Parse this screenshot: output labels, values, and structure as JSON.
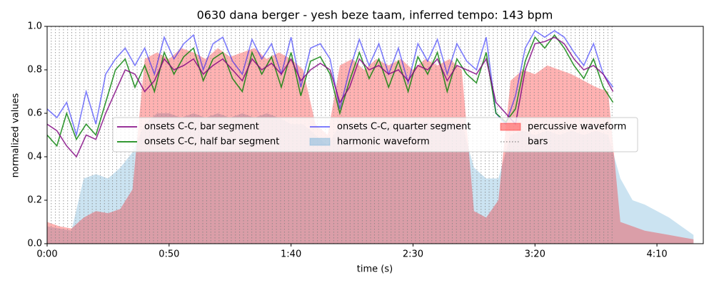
{
  "chart_data": {
    "type": "line",
    "title": "0630 dana berger - yesh beze taam, inferred tempo: 143 bpm",
    "xlabel": "time (s)",
    "ylabel": "normalized values",
    "xlim": [
      0,
      269
    ],
    "ylim": [
      0,
      1
    ],
    "xticks": [
      {
        "value": 0,
        "label": "0:00"
      },
      {
        "value": 50,
        "label": "0:50"
      },
      {
        "value": 100,
        "label": "1:40"
      },
      {
        "value": 150,
        "label": "2:30"
      },
      {
        "value": 200,
        "label": "3:20"
      },
      {
        "value": 250,
        "label": "4:10"
      }
    ],
    "yticks": [
      {
        "value": 0,
        "label": "0.0"
      },
      0.2,
      0.4,
      0.6,
      0.8,
      {
        "value": 1,
        "label": "1.0"
      }
    ],
    "series": [
      {
        "name": "onsets C-C, bar segment",
        "style": "line",
        "color": "#800080",
        "alpha": 0.8,
        "x": [
          0,
          4,
          8,
          12,
          16,
          20,
          24,
          28,
          32,
          36,
          40,
          44,
          48,
          52,
          56,
          60,
          64,
          68,
          72,
          76,
          80,
          84,
          88,
          92,
          96,
          100,
          104,
          108,
          112,
          116,
          120,
          124,
          128,
          132,
          136,
          140,
          144,
          148,
          152,
          156,
          160,
          164,
          168,
          172,
          176,
          180,
          184,
          188,
          192,
          196,
          200,
          204,
          208,
          212,
          216,
          220,
          224,
          228,
          232
        ],
        "values": [
          0.55,
          0.52,
          0.45,
          0.4,
          0.5,
          0.48,
          0.6,
          0.7,
          0.8,
          0.78,
          0.7,
          0.75,
          0.85,
          0.8,
          0.82,
          0.85,
          0.78,
          0.82,
          0.85,
          0.8,
          0.75,
          0.85,
          0.8,
          0.83,
          0.78,
          0.85,
          0.75,
          0.8,
          0.83,
          0.8,
          0.65,
          0.72,
          0.85,
          0.8,
          0.82,
          0.78,
          0.8,
          0.75,
          0.82,
          0.8,
          0.85,
          0.75,
          0.82,
          0.8,
          0.78,
          0.85,
          0.65,
          0.6,
          0.55,
          0.8,
          0.92,
          0.93,
          0.95,
          0.92,
          0.85,
          0.8,
          0.82,
          0.78,
          0.7
        ]
      },
      {
        "name": "onsets C-C, half bar segment",
        "style": "line",
        "color": "#008000",
        "alpha": 0.8,
        "x": [
          0,
          4,
          8,
          12,
          16,
          20,
          24,
          28,
          32,
          36,
          40,
          44,
          48,
          52,
          56,
          60,
          64,
          68,
          72,
          76,
          80,
          84,
          88,
          92,
          96,
          100,
          104,
          108,
          112,
          116,
          120,
          124,
          128,
          132,
          136,
          140,
          144,
          148,
          152,
          156,
          160,
          164,
          168,
          172,
          176,
          180,
          184,
          188,
          192,
          196,
          200,
          204,
          208,
          212,
          216,
          220,
          224,
          228,
          232
        ],
        "values": [
          0.5,
          0.45,
          0.6,
          0.48,
          0.55,
          0.5,
          0.65,
          0.8,
          0.85,
          0.72,
          0.82,
          0.7,
          0.88,
          0.78,
          0.86,
          0.9,
          0.75,
          0.85,
          0.88,
          0.76,
          0.7,
          0.88,
          0.78,
          0.86,
          0.72,
          0.88,
          0.68,
          0.84,
          0.86,
          0.78,
          0.6,
          0.75,
          0.88,
          0.76,
          0.85,
          0.72,
          0.84,
          0.7,
          0.86,
          0.78,
          0.88,
          0.7,
          0.85,
          0.78,
          0.74,
          0.88,
          0.6,
          0.56,
          0.62,
          0.84,
          0.95,
          0.9,
          0.96,
          0.9,
          0.82,
          0.76,
          0.85,
          0.72,
          0.65
        ]
      },
      {
        "name": "onsets C-C, quarter segment",
        "style": "line",
        "color": "#0000ff",
        "alpha": 0.5,
        "x": [
          0,
          4,
          8,
          12,
          16,
          20,
          24,
          28,
          32,
          36,
          40,
          44,
          48,
          52,
          56,
          60,
          64,
          68,
          72,
          76,
          80,
          84,
          88,
          92,
          96,
          100,
          104,
          108,
          112,
          116,
          120,
          124,
          128,
          132,
          136,
          140,
          144,
          148,
          152,
          156,
          160,
          164,
          168,
          172,
          176,
          180,
          184,
          188,
          192,
          196,
          200,
          204,
          208,
          212,
          216,
          220,
          224,
          228,
          232
        ],
        "values": [
          0.62,
          0.58,
          0.65,
          0.5,
          0.7,
          0.55,
          0.78,
          0.85,
          0.9,
          0.82,
          0.9,
          0.78,
          0.95,
          0.85,
          0.92,
          0.96,
          0.8,
          0.92,
          0.95,
          0.84,
          0.78,
          0.94,
          0.85,
          0.92,
          0.78,
          0.95,
          0.72,
          0.9,
          0.92,
          0.85,
          0.62,
          0.8,
          0.94,
          0.82,
          0.92,
          0.78,
          0.9,
          0.74,
          0.92,
          0.84,
          0.94,
          0.78,
          0.92,
          0.84,
          0.8,
          0.95,
          0.6,
          0.55,
          0.68,
          0.9,
          0.98,
          0.95,
          0.98,
          0.95,
          0.88,
          0.82,
          0.92,
          0.78,
          0.72
        ]
      },
      {
        "name": "harmonic waveform",
        "style": "area",
        "color": "#6baed6",
        "alpha": 0.35,
        "x": [
          0,
          5,
          10,
          15,
          20,
          25,
          30,
          35,
          40,
          45,
          50,
          55,
          60,
          65,
          70,
          75,
          80,
          85,
          90,
          95,
          100,
          105,
          110,
          115,
          120,
          125,
          130,
          135,
          140,
          145,
          150,
          155,
          160,
          165,
          170,
          175,
          180,
          185,
          190,
          195,
          200,
          205,
          210,
          215,
          220,
          225,
          230,
          235,
          240,
          245,
          250,
          255,
          260,
          265
        ],
        "values": [
          0.08,
          0.07,
          0.06,
          0.3,
          0.32,
          0.3,
          0.35,
          0.42,
          0.55,
          0.6,
          0.6,
          0.58,
          0.6,
          0.58,
          0.6,
          0.58,
          0.6,
          0.58,
          0.6,
          0.58,
          0.55,
          0.55,
          0.5,
          0.45,
          0.55,
          0.56,
          0.55,
          0.56,
          0.55,
          0.56,
          0.55,
          0.56,
          0.55,
          0.56,
          0.55,
          0.35,
          0.3,
          0.3,
          0.5,
          0.52,
          0.5,
          0.52,
          0.5,
          0.52,
          0.5,
          0.52,
          0.5,
          0.3,
          0.2,
          0.18,
          0.15,
          0.12,
          0.08,
          0.04
        ]
      },
      {
        "name": "percussive waveform",
        "style": "area",
        "color": "#ff0000",
        "alpha": 0.3,
        "x": [
          0,
          5,
          10,
          15,
          20,
          25,
          30,
          35,
          40,
          45,
          50,
          55,
          60,
          65,
          70,
          75,
          80,
          85,
          90,
          95,
          100,
          105,
          110,
          115,
          120,
          125,
          130,
          135,
          140,
          145,
          150,
          155,
          160,
          165,
          170,
          175,
          180,
          185,
          190,
          195,
          200,
          205,
          210,
          215,
          220,
          225,
          230,
          235,
          240,
          245,
          250,
          255,
          260,
          265
        ],
        "values": [
          0.1,
          0.08,
          0.07,
          0.12,
          0.15,
          0.14,
          0.16,
          0.25,
          0.85,
          0.88,
          0.85,
          0.9,
          0.88,
          0.85,
          0.9,
          0.86,
          0.88,
          0.9,
          0.85,
          0.88,
          0.85,
          0.8,
          0.55,
          0.5,
          0.82,
          0.85,
          0.8,
          0.85,
          0.82,
          0.85,
          0.8,
          0.85,
          0.82,
          0.85,
          0.8,
          0.15,
          0.12,
          0.2,
          0.75,
          0.8,
          0.78,
          0.82,
          0.8,
          0.78,
          0.75,
          0.72,
          0.7,
          0.1,
          0.08,
          0.06,
          0.05,
          0.04,
          0.03,
          0.02
        ]
      },
      {
        "name": "bars",
        "style": "vlines",
        "color": "#808080",
        "alpha": 0.8,
        "x": [
          0,
          1.7,
          3.4,
          5.0,
          6.7,
          8.4,
          10.1,
          11.7,
          13.4,
          15.1,
          16.8,
          18.5,
          20.1,
          21.8,
          23.5,
          25.2,
          26.8,
          28.5,
          30.2,
          31.9,
          33.6,
          35.2,
          36.9,
          38.6,
          40.3,
          42.0,
          43.6,
          45.3,
          47.0,
          48.7,
          50.3,
          52.0,
          53.7,
          55.4,
          57.1,
          58.7,
          60.4,
          62.1,
          63.8,
          65.4,
          67.1,
          68.8,
          70.5,
          72.2,
          73.8,
          75.5,
          77.2,
          78.9,
          80.5,
          82.2,
          83.9,
          85.6,
          87.3,
          88.9,
          90.6,
          92.3,
          94.0,
          95.7,
          97.3,
          99.0,
          100.7,
          102.4,
          104.0,
          105.7,
          107.4,
          109.1,
          110.8,
          112.4,
          114.1,
          115.8,
          117.5,
          119.1,
          120.8,
          122.5,
          124.2,
          125.9,
          127.5,
          129.2,
          130.9,
          132.6,
          134.2,
          135.9,
          137.6,
          139.3,
          141.0,
          142.6,
          144.3,
          146.0,
          147.7,
          149.4,
          151.0,
          152.7,
          154.4,
          156.1,
          157.7,
          159.4,
          161.1,
          162.8,
          164.5,
          166.1,
          167.8,
          169.5,
          171.2,
          172.8,
          174.5,
          176.2,
          177.9,
          179.6,
          181.2,
          182.9,
          184.6,
          186.3,
          187.9,
          189.6,
          191.3,
          193.0,
          194.7,
          196.3,
          198.0,
          199.7,
          201.4,
          203.1,
          204.7,
          206.4,
          208.1,
          209.8,
          211.4,
          213.1,
          214.8,
          216.5,
          218.2,
          219.8,
          221.5,
          223.2,
          224.9,
          226.5,
          228.2,
          229.9,
          231.6
        ]
      }
    ],
    "legend": "center"
  }
}
